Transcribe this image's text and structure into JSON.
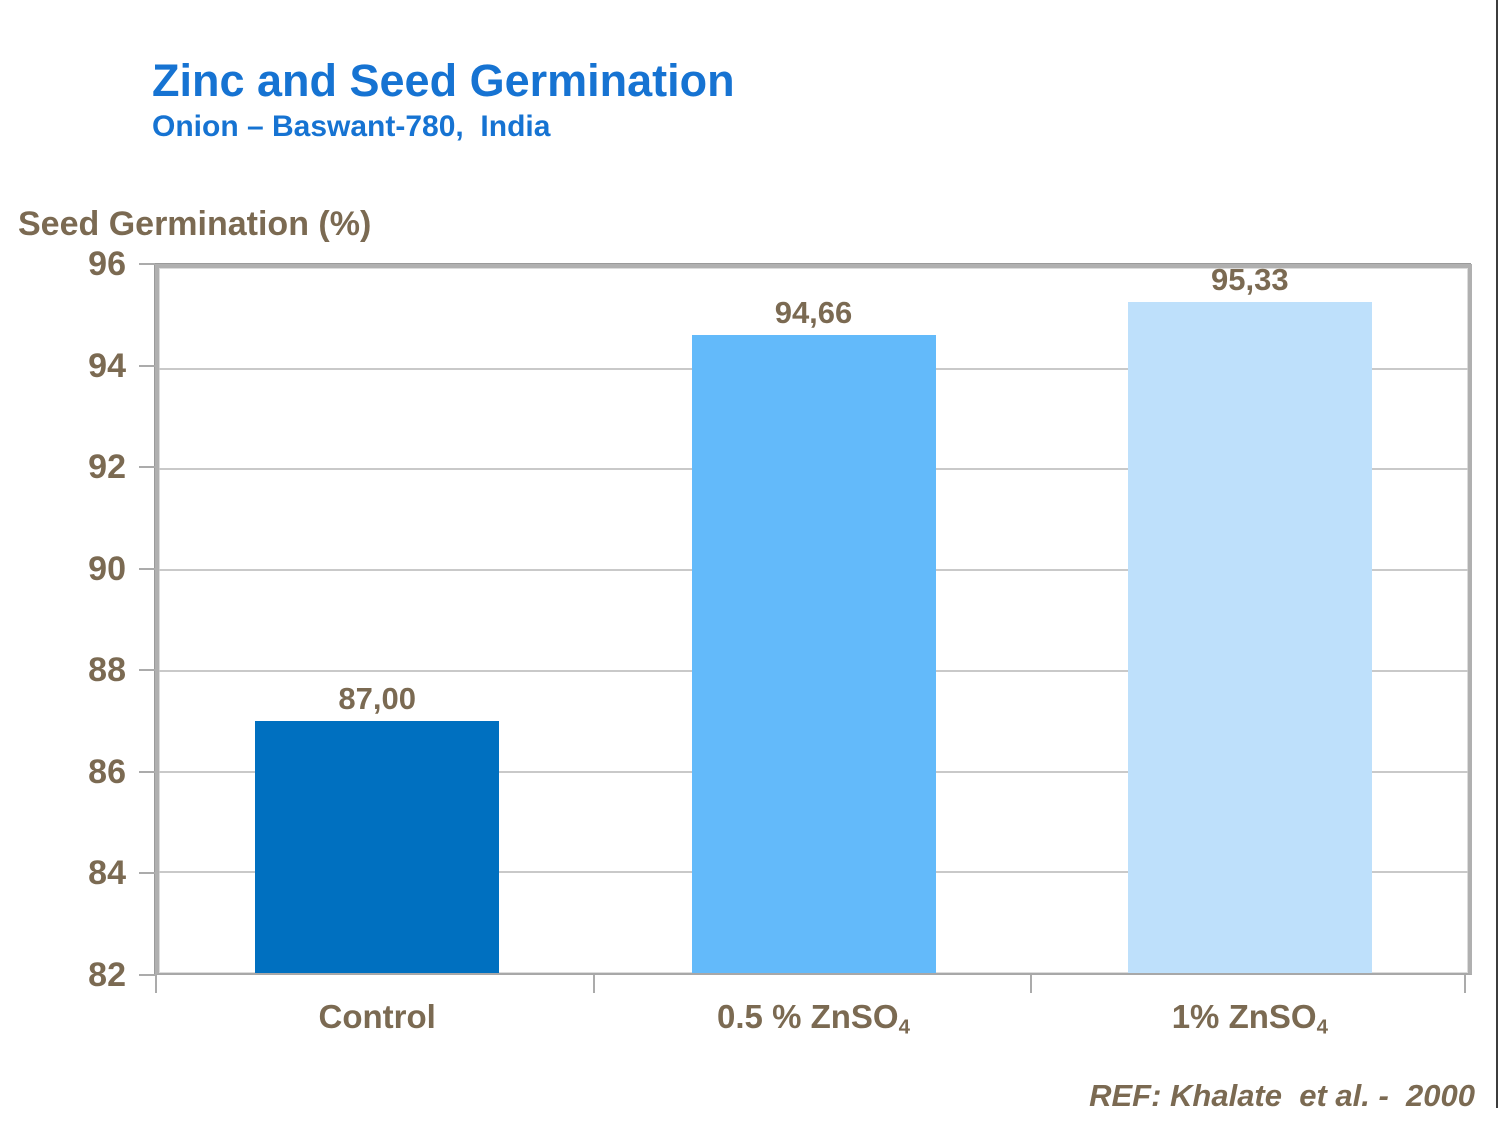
{
  "slide": {
    "title": "Zinc and Seed Germination",
    "subtitle": "Onion – Baswant-780,  India",
    "axis_title": "Seed Germination (%)",
    "reference": "REF: Khalate  et al. -  2000"
  },
  "colors": {
    "title_blue": "#1673D2",
    "text_brown": "#7B6A52",
    "frame_gray": "#B0B0B0",
    "gridline_gray": "#C9C9C9",
    "tick_gray": "#ABABAB",
    "bar_control": "#0070C0",
    "bar_znso4_half": "#63BAFA",
    "bar_znso4_one": "#BEE0FB",
    "edge_line_dark": "#3C3C3C"
  },
  "chart_data": {
    "type": "bar",
    "title": "Zinc and Seed Germination",
    "subtitle": "Onion – Baswant-780, India",
    "ylabel": "Seed Germination (%)",
    "xlabel": "",
    "ylim": [
      82,
      96
    ],
    "yticks": [
      96,
      94,
      92,
      90,
      88,
      86,
      84,
      82
    ],
    "grid": true,
    "legend": false,
    "categories": [
      {
        "id": "control",
        "label": "Control",
        "sub": ""
      },
      {
        "id": "znso4-0-5-pct",
        "label": "0.5 % ZnSO",
        "sub": "4"
      },
      {
        "id": "znso4-1-pct",
        "label": "1% ZnSO",
        "sub": "4"
      }
    ],
    "values": [
      87.0,
      94.66,
      95.33
    ],
    "value_labels": [
      "87,00",
      "94,66",
      "95,33"
    ],
    "bar_colors": [
      "#0070C0",
      "#63BAFA",
      "#BEE0FB"
    ],
    "source": "REF: Khalate et al. - 2000"
  }
}
